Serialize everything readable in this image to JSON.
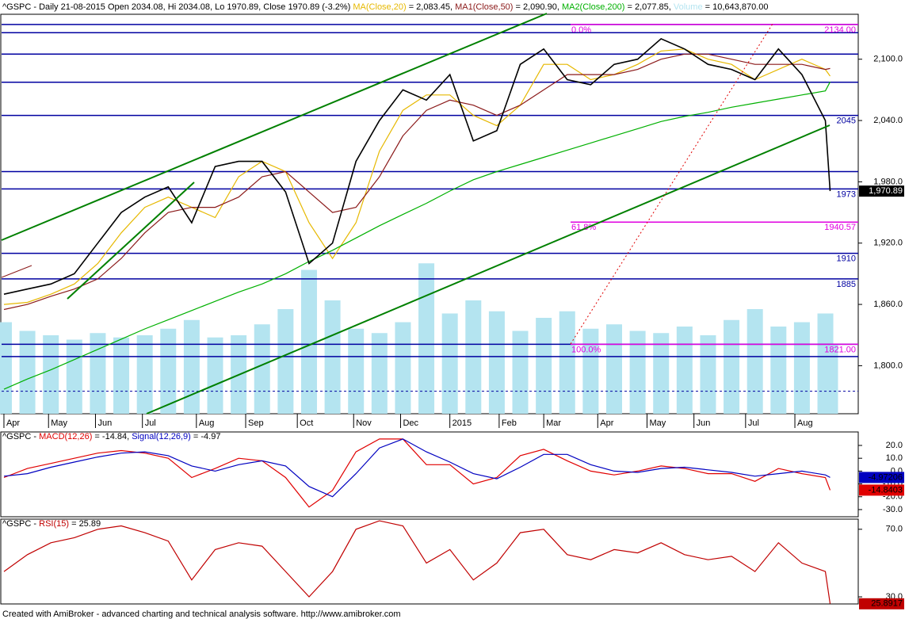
{
  "chart_data": [
    {
      "type": "line",
      "title": "^GSPC - Daily 21-08-2015 Open 2034.08, Hi 2034.08, Lo 1970.89, Close 1970.89 (-3.2%) ",
      "x": [
        0,
        10,
        20,
        30,
        40,
        50,
        60,
        70,
        80,
        90,
        100,
        110,
        120,
        130,
        140,
        150,
        160,
        170,
        180,
        190,
        200,
        210,
        220,
        230,
        240,
        250,
        260,
        270,
        280,
        290,
        300,
        310,
        320,
        330,
        340,
        350,
        352
      ],
      "xlim": [
        -1,
        364
      ],
      "xticks": [
        {
          "value": 0,
          "label": "Apr"
        },
        {
          "value": 19,
          "label": "May"
        },
        {
          "value": 39,
          "label": "Jun"
        },
        {
          "value": 59,
          "label": "Jul"
        },
        {
          "value": 82,
          "label": "Aug"
        },
        {
          "value": 103,
          "label": "Sep"
        },
        {
          "value": 125,
          "label": "Oct"
        },
        {
          "value": 149,
          "label": "Nov"
        },
        {
          "value": 169,
          "label": "Dec"
        },
        {
          "value": 190,
          "label": "2015"
        },
        {
          "value": 211,
          "label": "Feb"
        },
        {
          "value": 230,
          "label": "Mar"
        },
        {
          "value": 253,
          "label": "Apr"
        },
        {
          "value": 274,
          "label": "May"
        },
        {
          "value": 294,
          "label": "Jun"
        },
        {
          "value": 316,
          "label": "Jul"
        },
        {
          "value": 337,
          "label": "Aug"
        }
      ],
      "ylim": [
        1753,
        2144
      ],
      "yticks": [
        {
          "value": 1800,
          "label": "1,800.0"
        },
        {
          "value": 1860,
          "label": "1,860.0"
        },
        {
          "value": 1920,
          "label": "1,920.0"
        },
        {
          "value": 1980,
          "label": "1,980.0"
        },
        {
          "value": 2040,
          "label": "2,040.0"
        },
        {
          "value": 2100,
          "label": "2,100.0"
        }
      ],
      "close": {
        "color": "#000000",
        "values": [
          1870,
          1875,
          1880,
          1890,
          1920,
          1950,
          1965,
          1975,
          1940,
          1995,
          2000,
          2000,
          1970,
          1900,
          1920,
          2000,
          2040,
          2070,
          2060,
          2085,
          2020,
          2030,
          2095,
          2110,
          2080,
          2075,
          2095,
          2100,
          2120,
          2110,
          2095,
          2090,
          2080,
          2110,
          2085,
          2040,
          1970.89
        ],
        "badge": {
          "value": 1970.89,
          "label": "1,970.89"
        }
      },
      "series": [
        {
          "name": "MA(Close,20)",
          "legend_text": " = 2,083.45, ",
          "color": "#e6b800",
          "values": [
            1860,
            1862,
            1870,
            1880,
            1900,
            1930,
            1955,
            1965,
            1955,
            1945,
            1985,
            2000,
            1990,
            1940,
            1905,
            1940,
            2010,
            2050,
            2065,
            2065,
            2045,
            2035,
            2055,
            2095,
            2095,
            2080,
            2085,
            2095,
            2108,
            2110,
            2100,
            2095,
            2080,
            2090,
            2100,
            2090,
            2083.45
          ]
        },
        {
          "name": "MA1(Close,50)",
          "legend_text": " = 2,090.90, ",
          "color": "#8b1a1a",
          "values": [
            1855,
            1860,
            1868,
            1875,
            1885,
            1905,
            1930,
            1950,
            1955,
            1955,
            1965,
            1985,
            1990,
            1970,
            1950,
            1955,
            1985,
            2025,
            2050,
            2060,
            2055,
            2045,
            2055,
            2070,
            2085,
            2085,
            2085,
            2090,
            2100,
            2105,
            2105,
            2100,
            2095,
            2095,
            2095,
            2090,
            2090.9
          ]
        },
        {
          "name": "MA2(Close,200)",
          "legend_text": " = 2,077.85, ",
          "color": "#00b000",
          "values": [
            1777,
            1787,
            1796,
            1806,
            1816,
            1826,
            1836,
            1845,
            1854,
            1863,
            1872,
            1880,
            1890,
            1902,
            1913,
            1925,
            1937,
            1948,
            1959,
            1971,
            1982,
            1990,
            1997,
            2004,
            2011,
            2018,
            2025,
            2032,
            2039,
            2044,
            2048,
            2053,
            2057,
            2061,
            2065,
            2069,
            2077.85
          ]
        }
      ],
      "volume": {
        "name": "Volume",
        "legend_text": " = 10,643,870.00",
        "color": "#b4e4f0",
        "vlim": [
          0,
          12000000
        ],
        "values": [
          4200000,
          3800000,
          3600000,
          3400000,
          3700000,
          3500000,
          3600000,
          3900000,
          4300000,
          3500000,
          3600000,
          4100000,
          4800000,
          6600000,
          5200000,
          3900000,
          3700000,
          4200000,
          6900000,
          4600000,
          5200000,
          4700000,
          3800000,
          4400000,
          4700000,
          3900000,
          4100000,
          3800000,
          3700000,
          4000000,
          3600000,
          4300000,
          4800000,
          4000000,
          4200000,
          4600000,
          3200000
        ]
      },
      "levels": [
        2045,
        1973,
        1910,
        1885
      ],
      "lines": [
        2134,
        2126,
        2105,
        2077.5,
        1990,
        1821,
        1809
      ],
      "dashed_lines": [
        1775
      ],
      "level_color": "#0000a0",
      "fib_color": "#e000e0",
      "fib_levels": [
        {
          "value": 2134,
          "label": "2134.00",
          "pct": "0.0%"
        },
        {
          "value": 1940.57,
          "label": "1940.57",
          "pct": "61.8%"
        },
        {
          "value": 1821,
          "label": "1821.00",
          "pct": "100.0%"
        }
      ]
    },
    {
      "type": "line",
      "title": "^GSPC - ",
      "ylim": [
        -35.6,
        30.5
      ],
      "yticks": [
        {
          "value": 20,
          "label": "20.0"
        },
        {
          "value": 10,
          "label": "10.0"
        },
        {
          "value": 0,
          "label": "0.0"
        },
        {
          "value": -10,
          "label": "-10.0"
        },
        {
          "value": -20,
          "label": "-20.0"
        },
        {
          "value": -30,
          "label": "-30.0"
        }
      ],
      "series": [
        {
          "name": "MACD(12,26)",
          "legend_text": " = -14.84, ",
          "color": "#e00000",
          "badge": -14.8403,
          "values": [
            -5,
            2,
            6,
            10,
            14,
            16,
            14,
            10,
            -5,
            2,
            10,
            8,
            -5,
            -28,
            -15,
            15,
            25,
            25,
            5,
            5,
            -10,
            -5,
            12,
            17,
            8,
            0,
            -3,
            0,
            4,
            2,
            -2,
            -2,
            -8,
            2,
            -2,
            -5,
            -14.84
          ]
        },
        {
          "name": "Signal(12,26,9)",
          "legend_text": " = -4.97",
          "color": "#0000c0",
          "badge": -4.97206,
          "values": [
            -4,
            -2,
            3,
            7,
            11,
            14,
            15,
            12,
            4,
            0,
            5,
            8,
            4,
            -12,
            -20,
            -2,
            18,
            25,
            15,
            7,
            -2,
            -6,
            3,
            13,
            13,
            5,
            0,
            -1,
            2,
            3,
            1,
            -1,
            -4,
            -2,
            0,
            -3,
            -4.97
          ]
        }
      ]
    },
    {
      "type": "line",
      "title": "^GSPC - ",
      "ylim": [
        25.8,
        76
      ],
      "yticks": [
        {
          "value": 70,
          "label": "70.0"
        },
        {
          "value": 30,
          "label": "30.0"
        }
      ],
      "series": [
        {
          "name": "RSI(15)",
          "legend_text": " = 25.89",
          "color": "#c00000",
          "badge": 25.8917,
          "values": [
            45,
            55,
            62,
            65,
            70,
            72,
            68,
            63,
            40,
            58,
            62,
            60,
            45,
            30,
            45,
            70,
            75,
            72,
            50,
            58,
            40,
            50,
            68,
            70,
            55,
            52,
            58,
            56,
            62,
            55,
            52,
            54,
            45,
            62,
            50,
            45,
            25.89
          ]
        }
      ]
    }
  ],
  "footer": "Created with AmiBroker - advanced charting and technical analysis software. http://www.amibroker.com"
}
